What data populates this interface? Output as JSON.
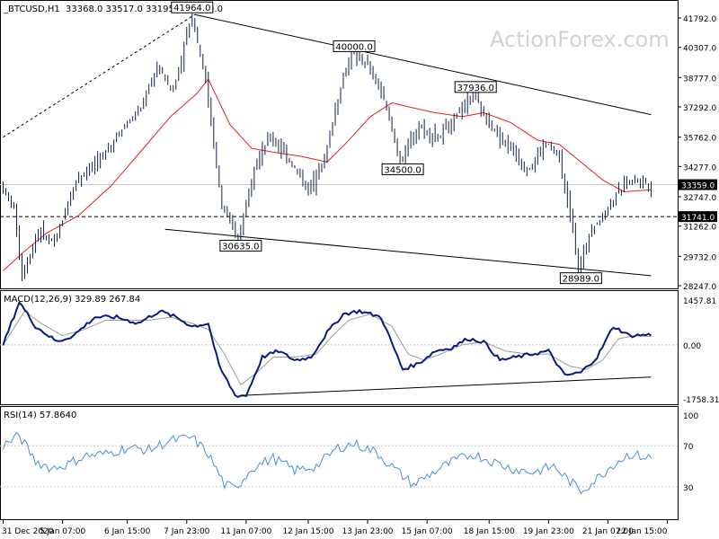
{
  "header": {
    "symbol": "_BTCUSD,H1",
    "ohlc": "33368.0 33517.0 33195.0 33359.0"
  },
  "watermark": "ActionForex.com",
  "colors": {
    "candle": "#0f1f45",
    "sma": "#e02020",
    "macd": "#0a1a80",
    "signal": "#9a9a9a",
    "rsi": "#4a8fd8",
    "grid": "#c8c8c8",
    "frame": "#000000",
    "watermark": "#d2d2d2",
    "trendline": "#000000"
  },
  "chart_data": [
    {
      "type": "candlestick",
      "name": "price",
      "ylim": [
        28247,
        41792
      ],
      "yticks": [
        {
          "value": 41792,
          "label": "41792.0"
        },
        {
          "value": 40307,
          "label": "40307.0"
        },
        {
          "value": 38777,
          "label": "38777.0"
        },
        {
          "value": 37292,
          "label": "37292.0"
        },
        {
          "value": 35762,
          "label": "35762.0"
        },
        {
          "value": 34277,
          "label": "34277.0"
        },
        {
          "value": 32747,
          "label": "32747.0"
        },
        {
          "value": 31262,
          "label": "31262.0"
        },
        {
          "value": 29732,
          "label": "29732.0"
        },
        {
          "value": 28247,
          "label": "28247.0"
        }
      ],
      "current_price": {
        "value": 33359,
        "label": "33359.0"
      },
      "level_line": {
        "value": 31741,
        "label": "31741.0"
      },
      "annotations": [
        {
          "label": "41964.0",
          "index": 70,
          "value": 41964
        },
        {
          "label": "40000.0",
          "index": 130,
          "value": 40000
        },
        {
          "label": "37936.0",
          "index": 175,
          "value": 37936
        },
        {
          "label": "34500.0",
          "index": 148,
          "value": 34500
        },
        {
          "label": "30635.0",
          "index": 88,
          "value": 30635
        },
        {
          "label": "28989.0",
          "index": 214,
          "value": 28989
        }
      ],
      "trendlines": [
        {
          "from": [
            0,
            35762
          ],
          "to": [
            71,
            41964
          ],
          "dashed": true
        },
        {
          "from": [
            71,
            41964
          ],
          "to": [
            240,
            36900
          ],
          "dashed": false
        },
        {
          "from": [
            60,
            31100
          ],
          "to": [
            240,
            28750
          ],
          "dashed": false
        }
      ],
      "anchors": [
        [
          0,
          33400
        ],
        [
          5,
          32100
        ],
        [
          8,
          28700
        ],
        [
          14,
          31000
        ],
        [
          20,
          30400
        ],
        [
          28,
          33600
        ],
        [
          38,
          34800
        ],
        [
          45,
          36200
        ],
        [
          52,
          37200
        ],
        [
          58,
          39300
        ],
        [
          64,
          38100
        ],
        [
          71,
          41964
        ],
        [
          76,
          38600
        ],
        [
          82,
          32200
        ],
        [
          88,
          30635
        ],
        [
          94,
          34300
        ],
        [
          100,
          35800
        ],
        [
          108,
          34400
        ],
        [
          114,
          33100
        ],
        [
          120,
          34700
        ],
        [
          126,
          38300
        ],
        [
          130,
          40000
        ],
        [
          136,
          39400
        ],
        [
          142,
          37700
        ],
        [
          148,
          34500
        ],
        [
          155,
          36300
        ],
        [
          162,
          35700
        ],
        [
          170,
          37100
        ],
        [
          175,
          37936
        ],
        [
          180,
          36600
        ],
        [
          188,
          35300
        ],
        [
          195,
          34000
        ],
        [
          202,
          35500
        ],
        [
          207,
          34700
        ],
        [
          212,
          31000
        ],
        [
          214,
          28989
        ],
        [
          218,
          30900
        ],
        [
          222,
          31600
        ],
        [
          227,
          32600
        ],
        [
          232,
          33500
        ],
        [
          236,
          33700
        ],
        [
          240,
          33359
        ]
      ],
      "sma_anchors": [
        [
          0,
          29000
        ],
        [
          8,
          30000
        ],
        [
          16,
          30900
        ],
        [
          28,
          31800
        ],
        [
          40,
          33300
        ],
        [
          52,
          35200
        ],
        [
          62,
          36800
        ],
        [
          72,
          38000
        ],
        [
          76,
          38700
        ],
        [
          84,
          36400
        ],
        [
          92,
          35200
        ],
        [
          100,
          35000
        ],
        [
          110,
          34800
        ],
        [
          120,
          34500
        ],
        [
          128,
          35600
        ],
        [
          136,
          36800
        ],
        [
          144,
          37500
        ],
        [
          150,
          37300
        ],
        [
          160,
          37000
        ],
        [
          170,
          36800
        ],
        [
          178,
          37000
        ],
        [
          188,
          36500
        ],
        [
          198,
          35600
        ],
        [
          206,
          35400
        ],
        [
          214,
          34500
        ],
        [
          222,
          33600
        ],
        [
          230,
          33000
        ],
        [
          240,
          33100
        ]
      ]
    },
    {
      "type": "line",
      "name": "MACD",
      "title": "MACD(12,26,9) 329.89 267.84",
      "ylim": [
        -1758.31,
        1457.81
      ],
      "yticks": [
        {
          "value": 1457.81,
          "label": "1457.81"
        },
        {
          "value": 0,
          "label": "0.00"
        },
        {
          "value": -1758.31,
          "label": "-1758.31"
        }
      ],
      "series": [
        {
          "name": "MACD",
          "anchors": [
            [
              0,
              0
            ],
            [
              6,
              1400
            ],
            [
              12,
              600
            ],
            [
              20,
              100
            ],
            [
              26,
              300
            ],
            [
              34,
              900
            ],
            [
              42,
              900
            ],
            [
              50,
              700
            ],
            [
              58,
              1100
            ],
            [
              64,
              900
            ],
            [
              70,
              600
            ],
            [
              76,
              700
            ],
            [
              80,
              -700
            ],
            [
              86,
              -1650
            ],
            [
              90,
              -1650
            ],
            [
              96,
              -400
            ],
            [
              102,
              -200
            ],
            [
              108,
              -500
            ],
            [
              114,
              -400
            ],
            [
              120,
              400
            ],
            [
              126,
              1000
            ],
            [
              132,
              1100
            ],
            [
              140,
              900
            ],
            [
              148,
              -800
            ],
            [
              154,
              -600
            ],
            [
              160,
              -200
            ],
            [
              166,
              -100
            ],
            [
              172,
              200
            ],
            [
              178,
              100
            ],
            [
              184,
              -500
            ],
            [
              190,
              -400
            ],
            [
              196,
              -300
            ],
            [
              202,
              -200
            ],
            [
              208,
              -1000
            ],
            [
              214,
              -900
            ],
            [
              220,
              -400
            ],
            [
              226,
              600
            ],
            [
              232,
              300
            ],
            [
              240,
              330
            ]
          ]
        },
        {
          "name": "Signal",
          "anchors": [
            [
              0,
              0
            ],
            [
              8,
              1100
            ],
            [
              14,
              700
            ],
            [
              22,
              300
            ],
            [
              30,
              500
            ],
            [
              38,
              800
            ],
            [
              46,
              800
            ],
            [
              54,
              800
            ],
            [
              62,
              900
            ],
            [
              70,
              700
            ],
            [
              76,
              500
            ],
            [
              82,
              -300
            ],
            [
              88,
              -1300
            ],
            [
              94,
              -900
            ],
            [
              100,
              -400
            ],
            [
              108,
              -400
            ],
            [
              116,
              -300
            ],
            [
              122,
              300
            ],
            [
              128,
              800
            ],
            [
              136,
              1000
            ],
            [
              144,
              600
            ],
            [
              150,
              -300
            ],
            [
              156,
              -500
            ],
            [
              162,
              -300
            ],
            [
              170,
              0
            ],
            [
              178,
              100
            ],
            [
              186,
              -200
            ],
            [
              194,
              -300
            ],
            [
              202,
              -300
            ],
            [
              210,
              -700
            ],
            [
              216,
              -800
            ],
            [
              222,
              -500
            ],
            [
              228,
              200
            ],
            [
              234,
              300
            ],
            [
              240,
              268
            ]
          ]
        }
      ],
      "trendline": {
        "from": [
          88,
          -1650
        ],
        "to": [
          240,
          -1050
        ]
      }
    },
    {
      "type": "line",
      "name": "RSI",
      "title": "RSI(14) 57.8640",
      "ylim": [
        0,
        100
      ],
      "yticks": [
        {
          "value": 100,
          "label": "100"
        },
        {
          "value": 70,
          "label": "70"
        },
        {
          "value": 30,
          "label": "30"
        },
        {
          "value": 0,
          "label": "0"
        }
      ],
      "levels": [
        70,
        30
      ],
      "anchors": [
        [
          0,
          70
        ],
        [
          6,
          80
        ],
        [
          12,
          55
        ],
        [
          18,
          48
        ],
        [
          24,
          52
        ],
        [
          30,
          60
        ],
        [
          38,
          62
        ],
        [
          46,
          68
        ],
        [
          54,
          66
        ],
        [
          62,
          75
        ],
        [
          70,
          78
        ],
        [
          76,
          62
        ],
        [
          82,
          32
        ],
        [
          86,
          28
        ],
        [
          92,
          48
        ],
        [
          100,
          58
        ],
        [
          108,
          46
        ],
        [
          116,
          50
        ],
        [
          124,
          68
        ],
        [
          130,
          72
        ],
        [
          138,
          64
        ],
        [
          146,
          45
        ],
        [
          152,
          32
        ],
        [
          158,
          42
        ],
        [
          166,
          54
        ],
        [
          174,
          62
        ],
        [
          180,
          56
        ],
        [
          188,
          48
        ],
        [
          196,
          44
        ],
        [
          204,
          50
        ],
        [
          210,
          35
        ],
        [
          214,
          26
        ],
        [
          220,
          38
        ],
        [
          226,
          52
        ],
        [
          232,
          62
        ],
        [
          240,
          57.864
        ]
      ]
    }
  ],
  "x_axis": {
    "labels": [
      {
        "index": 0,
        "label": "31 Dec 2020"
      },
      {
        "index": 22,
        "label": "5 Jan 07:00"
      },
      {
        "index": 46,
        "label": "6 Jan 15:00"
      },
      {
        "index": 68,
        "label": "7 Jan 23:00"
      },
      {
        "index": 90,
        "label": "11 Jan 07:00"
      },
      {
        "index": 113,
        "label": "12 Jan 15:00"
      },
      {
        "index": 135,
        "label": "13 Jan 23:00"
      },
      {
        "index": 157,
        "label": "15 Jan 07:00"
      },
      {
        "index": 180,
        "label": "18 Jan 15:00"
      },
      {
        "index": 202,
        "label": "19 Jan 23:00"
      },
      {
        "index": 224,
        "label": "21 Jan 07:00"
      },
      {
        "index": 246,
        "label": "22 Jan 15:00"
      }
    ]
  }
}
